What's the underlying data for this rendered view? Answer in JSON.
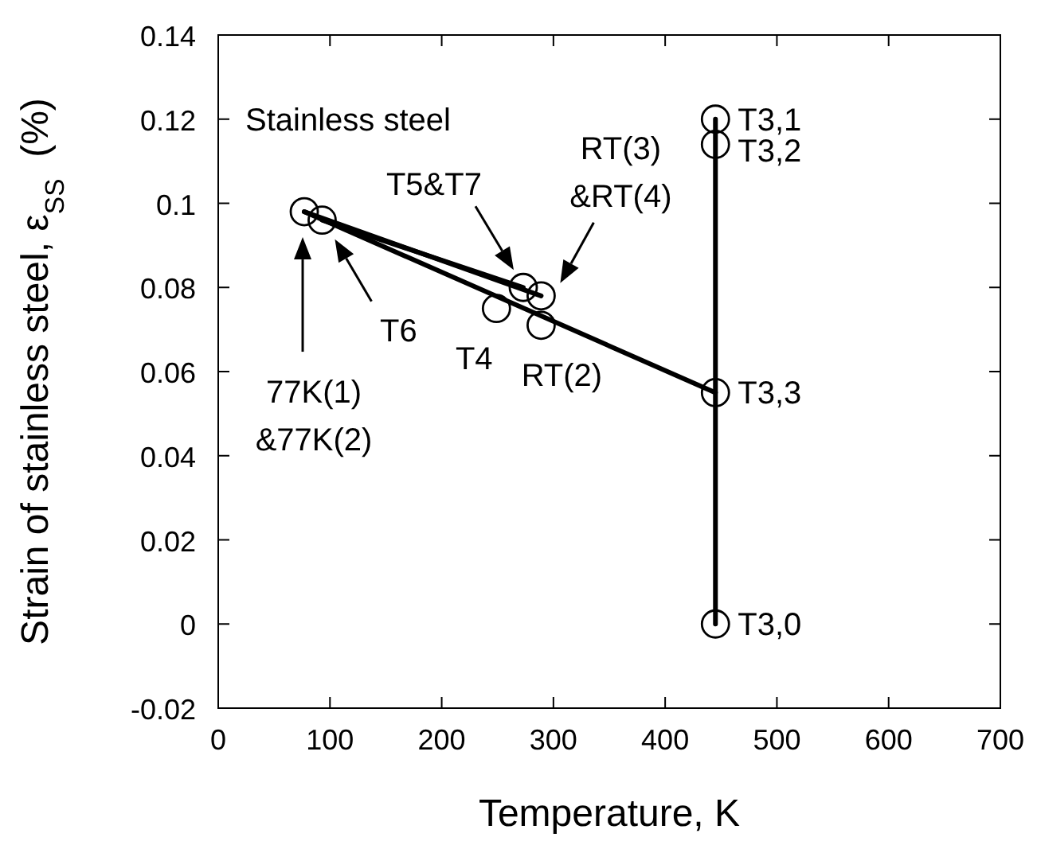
{
  "chart_data": {
    "type": "scatter",
    "xlabel": "Temperature, K",
    "ylabel": "Strain of stainless steel, ε$_{SS}$  (%)",
    "xlim": [
      0,
      700
    ],
    "xticks": [
      0,
      100,
      200,
      300,
      400,
      500,
      600,
      700
    ],
    "ylim": [
      -0.02,
      0.14
    ],
    "yticks": [
      -0.02,
      0,
      0.02,
      0.04,
      0.06,
      0.08,
      0.1,
      0.12,
      0.14
    ],
    "grid": false,
    "series": [
      {
        "marker": "circle",
        "color": "#000000",
        "x": [
          77,
          93,
          249,
          273,
          289,
          289,
          445,
          445,
          445,
          445
        ],
        "values": [
          0.098,
          0.096,
          0.075,
          0.08,
          0.078,
          0.071,
          0.055,
          0.12,
          0.114,
          0
        ]
      },
      {
        "type": "line",
        "marker": "none",
        "color": "#000000",
        "x": [
          77,
          289
        ],
        "values": [
          0.098,
          0.078
        ]
      },
      {
        "type": "line",
        "marker": "none",
        "color": "#000000",
        "x": [
          93,
          273
        ],
        "values": [
          0.096,
          0.08
        ]
      },
      {
        "type": "line",
        "marker": "none",
        "color": "#000000",
        "x": [
          77,
          445
        ],
        "values": [
          0.098,
          0.055
        ]
      },
      {
        "type": "line",
        "marker": "none",
        "color": "#000000",
        "x": [
          445,
          445
        ],
        "values": [
          0,
          0.12
        ]
      }
    ],
    "annotations": [
      "Stainless steel",
      "77K(1)\n&77K(2)",
      "T6",
      {
        "text": "T4",
        "x": 249,
        "y": 0.075
      },
      {
        "text": "T5&T7",
        "x": 273,
        "y": 0.08
      },
      {
        "text": "RT(3)\n&RT(4)",
        "x": 289,
        "y": 0.078
      },
      {
        "text": "RT(2)",
        "x": 289,
        "y": 0.071
      },
      {
        "text": "T3,1",
        "x": 445,
        "y": 0.12
      },
      {
        "text": "T3,2",
        "x": 445,
        "y": 0.114
      },
      {
        "text": "T3,3",
        "x": 445,
        "y": 0.055
      },
      {
        "text": "T3,0",
        "x": 445,
        "y": 0
      }
    ]
  }
}
